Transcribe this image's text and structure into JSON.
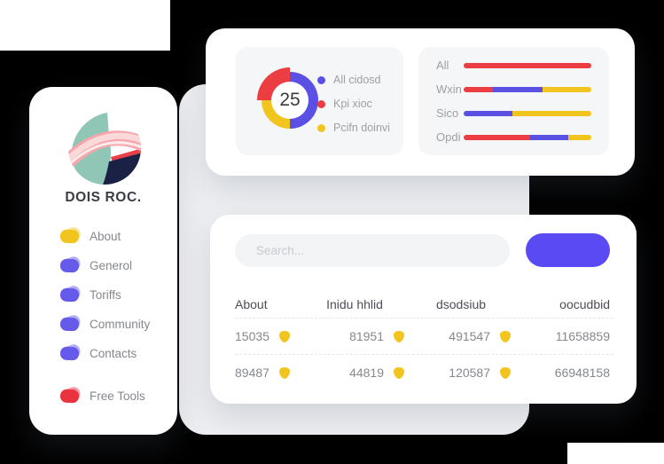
{
  "brand": {
    "name": "DOIS ROC."
  },
  "colors": {
    "accent_blue": "#5a4af4",
    "purple": "#5b50e4",
    "red": "#ec3d43",
    "yellow": "#f1c51d",
    "badge": "#f1c51d",
    "panel_bg": "#edeff2",
    "inner_card_bg": "#f5f6f8"
  },
  "sidebar": {
    "items": [
      {
        "label": "About",
        "color": "#f1c51d",
        "spaced": false
      },
      {
        "label": "Generol",
        "color": "#655aea",
        "spaced": false
      },
      {
        "label": "Toriffs",
        "color": "#655aea",
        "spaced": false
      },
      {
        "label": "Community",
        "color": "#655aea",
        "spaced": false
      },
      {
        "label": "Contacts",
        "color": "#655aea",
        "spaced": false
      },
      {
        "label": "Free Tools",
        "color": "#e93440",
        "spaced": true
      }
    ]
  },
  "chart_data": [
    {
      "type": "pie",
      "subtype": "donut",
      "center_label": "25",
      "legend_position": "right",
      "units": "percent",
      "slices": [
        {
          "label": "All cidosd",
          "value": 50,
          "start": 0,
          "color": "#5b50e4"
        },
        {
          "label": "Kpi xioc",
          "value": 25,
          "start": 75,
          "color": "#ec3d43"
        },
        {
          "label": "Pcifn doinvi",
          "value": 25,
          "start": 50,
          "color": "#f1c51d"
        }
      ]
    },
    {
      "type": "bar",
      "orientation": "horizontal",
      "stacked": true,
      "grid": false,
      "xlim": [
        0,
        100
      ],
      "categories": [
        "All",
        "Wxin",
        "Sico",
        "Opdi"
      ],
      "series": [
        {
          "name": "series-red",
          "color": "#ec3d43",
          "values": [
            100,
            23,
            0,
            52
          ]
        },
        {
          "name": "series-blue",
          "color": "#5b50e4",
          "values": [
            0,
            39,
            38,
            30
          ]
        },
        {
          "name": "series-yellow",
          "color": "#f1c51d",
          "values": [
            0,
            38,
            62,
            18
          ]
        }
      ]
    }
  ],
  "search": {
    "placeholder": "Search...",
    "button_label": ""
  },
  "table": {
    "headers": [
      "About",
      "Inidu hhlid",
      "dsodsiub",
      "oocudbid"
    ],
    "rows": [
      [
        {
          "value": "15035",
          "badge": true
        },
        {
          "value": "81951",
          "badge": true
        },
        {
          "value": "491547",
          "badge": true
        },
        {
          "value": "11658859",
          "badge": false
        }
      ],
      [
        {
          "value": "89487",
          "badge": true
        },
        {
          "value": "44819",
          "badge": true
        },
        {
          "value": "120587",
          "badge": true
        },
        {
          "value": "66948158",
          "badge": false
        }
      ]
    ]
  }
}
